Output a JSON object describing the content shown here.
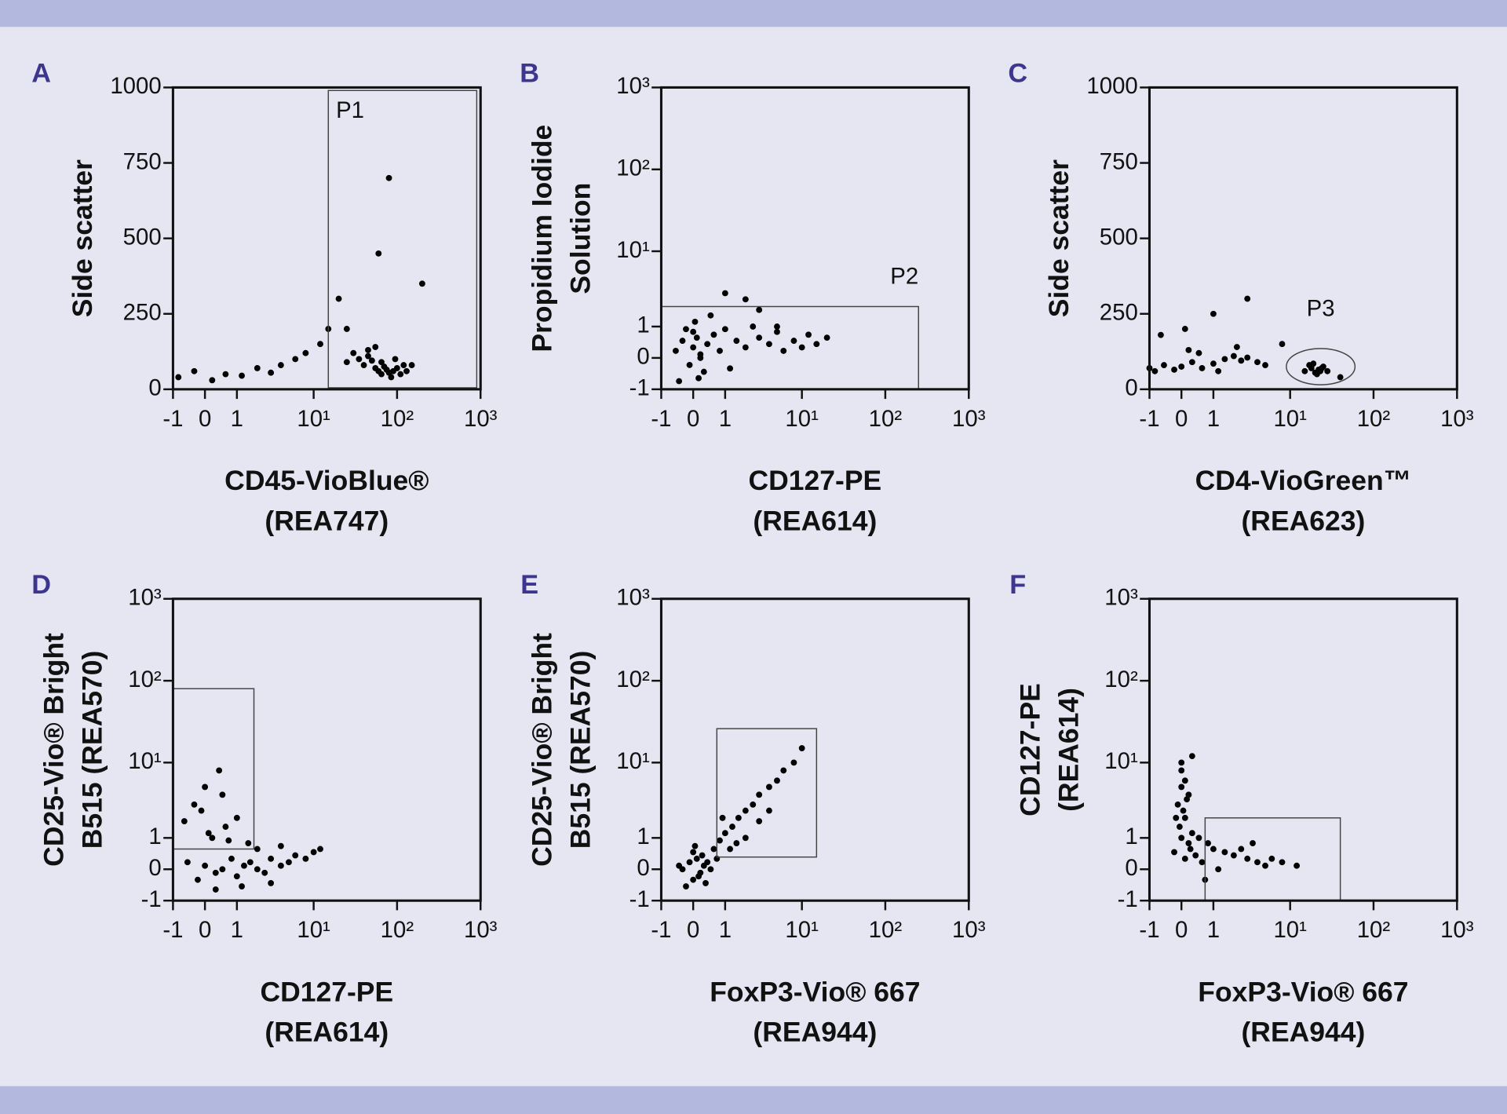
{
  "chart_data": [
    {
      "type": "scatter",
      "panel": "A",
      "xlabel": [
        "CD45-VioBlue®",
        "(REA747)"
      ],
      "ylabel": [
        "Side scatter"
      ],
      "xscale": "asinh",
      "yscale": "linear",
      "xlim": [
        -1,
        1000
      ],
      "ylim": [
        0,
        1000
      ],
      "xticks": [
        -1,
        0,
        1,
        {
          "value": 10,
          "label": "10¹"
        },
        {
          "value": 100,
          "label": "10²"
        },
        {
          "value": 1000,
          "label": "10³"
        }
      ],
      "yticks": [
        0,
        250,
        500,
        750,
        1000
      ],
      "color": "#000000",
      "x": [
        -0.8,
        -0.3,
        0.2,
        0.6,
        1.2,
        2,
        3,
        4,
        6,
        8,
        12,
        15,
        20,
        25,
        30,
        35,
        40,
        45,
        50,
        55,
        60,
        65,
        70,
        75,
        80,
        90,
        100,
        110,
        120,
        45,
        55,
        65,
        85,
        95,
        130,
        150,
        25,
        60,
        80,
        200
      ],
      "values": [
        40,
        60,
        30,
        50,
        45,
        70,
        55,
        80,
        100,
        120,
        150,
        200,
        300,
        90,
        120,
        100,
        80,
        110,
        95,
        70,
        60,
        50,
        75,
        65,
        55,
        60,
        70,
        50,
        80,
        130,
        140,
        90,
        40,
        100,
        60,
        80,
        200,
        450,
        700,
        350
      ],
      "gates": [
        {
          "shape": "rect",
          "label": "P1",
          "x": [
            15,
            900
          ],
          "y": [
            5,
            990
          ]
        }
      ]
    },
    {
      "type": "scatter",
      "panel": "B",
      "xlabel": [
        "CD127-PE",
        "(REA614)"
      ],
      "ylabel": [
        "Propidium Iodide",
        "Solution"
      ],
      "xscale": "asinh",
      "yscale": "asinh",
      "xlim": [
        -1,
        1000
      ],
      "ylim": [
        -1,
        1000
      ],
      "xticks": [
        -1,
        0,
        1,
        {
          "value": 10,
          "label": "10¹"
        },
        {
          "value": 100,
          "label": "10²"
        },
        {
          "value": 1000,
          "label": "10³"
        }
      ],
      "yticks": [
        -1,
        0,
        1,
        {
          "value": 10,
          "label": "10¹"
        },
        {
          "value": 100,
          "label": "10²"
        },
        {
          "value": 1000,
          "label": "10³"
        }
      ],
      "color": "#000000",
      "x": [
        -0.5,
        -0.3,
        -0.1,
        0,
        0.1,
        0.2,
        0.3,
        -0.2,
        0.05,
        0.15,
        0.4,
        0.6,
        0.8,
        1,
        1.5,
        2,
        2.5,
        3,
        4,
        5,
        6,
        8,
        10,
        12,
        15,
        3,
        2,
        1.2,
        0.5,
        -0.4,
        0,
        0.2,
        20,
        1,
        5
      ],
      "values": [
        0.2,
        0.5,
        -0.2,
        0.3,
        0.6,
        0,
        -0.4,
        0.9,
        1.2,
        -0.6,
        0.4,
        0.7,
        0.2,
        0.9,
        0.5,
        0.3,
        1,
        0.6,
        0.4,
        0.8,
        0.2,
        0.5,
        0.3,
        0.7,
        0.4,
        1.8,
        2.5,
        -0.3,
        1.5,
        -0.7,
        0.8,
        0.1,
        0.6,
        3,
        1
      ],
      "gates": [
        {
          "shape": "rect",
          "label": "P2",
          "x": [
            -1,
            250
          ],
          "y": [
            -1,
            2
          ]
        }
      ]
    },
    {
      "type": "scatter",
      "panel": "C",
      "xlabel": [
        "CD4-VioGreen™",
        "(REA623)"
      ],
      "ylabel": [
        "Side scatter"
      ],
      "xscale": "asinh",
      "yscale": "linear",
      "xlim": [
        -1,
        1000
      ],
      "ylim": [
        0,
        1000
      ],
      "xticks": [
        -1,
        0,
        1,
        {
          "value": 10,
          "label": "10¹"
        },
        {
          "value": 100,
          "label": "10²"
        },
        {
          "value": 1000,
          "label": "10³"
        }
      ],
      "yticks": [
        0,
        250,
        500,
        750,
        1000
      ],
      "color": "#000000",
      "x": [
        -1,
        -0.8,
        -0.5,
        -0.2,
        0,
        0.3,
        0.6,
        1,
        1.5,
        2,
        2.5,
        3,
        4,
        5,
        0.5,
        1.2,
        2.2,
        -0.6,
        0.1,
        15,
        18,
        20,
        22,
        25,
        28,
        17,
        21,
        24,
        19,
        23,
        8,
        40,
        3,
        1,
        0.2
      ],
      "values": [
        70,
        60,
        80,
        65,
        75,
        90,
        70,
        85,
        100,
        110,
        95,
        105,
        90,
        80,
        120,
        60,
        140,
        180,
        200,
        60,
        70,
        55,
        65,
        75,
        60,
        80,
        50,
        70,
        85,
        60,
        150,
        40,
        300,
        250,
        130
      ],
      "gates": [
        {
          "shape": "ellipse",
          "label": "P3",
          "x": [
            9,
            60
          ],
          "y": [
            15,
            135
          ]
        }
      ]
    },
    {
      "type": "scatter",
      "panel": "D",
      "xlabel": [
        "CD127-PE",
        "(REA614)"
      ],
      "ylabel": [
        "CD25-Vio® Bright",
        "B515 (REA570)"
      ],
      "xscale": "asinh",
      "yscale": "asinh",
      "xlim": [
        -1,
        1000
      ],
      "ylim": [
        -1,
        1000
      ],
      "xticks": [
        -1,
        0,
        1,
        {
          "value": 10,
          "label": "10¹"
        },
        {
          "value": 100,
          "label": "10²"
        },
        {
          "value": 1000,
          "label": "10³"
        }
      ],
      "yticks": [
        -1,
        0,
        1,
        {
          "value": 10,
          "label": "10¹"
        },
        {
          "value": 100,
          "label": "10²"
        },
        {
          "value": 1000,
          "label": "10³"
        }
      ],
      "color": "#000000",
      "x": [
        -0.5,
        -0.2,
        0,
        0.3,
        0.5,
        0.8,
        1,
        1.3,
        1.6,
        2,
        2.5,
        3,
        4,
        5,
        6,
        8,
        10,
        0.2,
        0.6,
        1,
        1.5,
        -0.3,
        0,
        0.4,
        0.1,
        -0.1,
        0.7,
        2,
        3,
        1.2,
        0.3,
        12,
        0.5,
        4,
        -0.6
      ],
      "values": [
        0.2,
        -0.3,
        0.1,
        -0.1,
        0,
        0.3,
        -0.2,
        0.1,
        0.2,
        0,
        -0.1,
        0.3,
        0.1,
        0.2,
        0.4,
        0.3,
        0.5,
        1,
        1.5,
        2,
        0.8,
        3,
        5,
        8,
        1.2,
        2.5,
        0.9,
        0.6,
        -0.4,
        -0.5,
        -0.6,
        0.6,
        4,
        0.7,
        1.8
      ],
      "gates": [
        {
          "shape": "rect",
          "x": [
            -1,
            1.8
          ],
          "y": [
            0.6,
            80
          ]
        }
      ]
    },
    {
      "type": "scatter",
      "panel": "E",
      "xlabel": [
        "FoxP3-Vio® 667",
        "(REA944)"
      ],
      "ylabel": [
        "CD25-Vio® Bright",
        "B515 (REA570)"
      ],
      "xscale": "asinh",
      "yscale": "asinh",
      "xlim": [
        -1,
        1000
      ],
      "ylim": [
        -1,
        1000
      ],
      "xticks": [
        -1,
        0,
        1,
        {
          "value": 10,
          "label": "10¹"
        },
        {
          "value": 100,
          "label": "10²"
        },
        {
          "value": 1000,
          "label": "10³"
        }
      ],
      "yticks": [
        -1,
        0,
        1,
        {
          "value": 10,
          "label": "10¹"
        },
        {
          "value": 100,
          "label": "10²"
        },
        {
          "value": 1000,
          "label": "10³"
        }
      ],
      "color": "#000000",
      "x": [
        -0.3,
        -0.1,
        0,
        0.1,
        0.2,
        0.3,
        0,
        -0.2,
        0.15,
        0.25,
        0.05,
        0.4,
        0.6,
        0.8,
        1,
        1.3,
        1.6,
        2,
        2.5,
        3,
        4,
        5,
        6,
        8,
        1.2,
        2,
        3,
        0.9,
        1.5,
        -0.4,
        0.5,
        0.35,
        10,
        0.7,
        4
      ],
      "values": [
        0,
        0.2,
        -0.3,
        0.3,
        -0.1,
        0.1,
        0.5,
        -0.5,
        -0.2,
        0.4,
        0.7,
        0.2,
        0.6,
        0.9,
        1.2,
        1.5,
        2,
        2.5,
        3,
        4,
        5,
        6,
        8,
        10,
        0.6,
        1,
        1.8,
        2,
        0.8,
        0.1,
        0,
        -0.4,
        15,
        0.3,
        2.5
      ],
      "gates": [
        {
          "shape": "rect",
          "x": [
            0.7,
            15
          ],
          "y": [
            0.35,
            26
          ]
        }
      ]
    },
    {
      "type": "scatter",
      "panel": "F",
      "xlabel": [
        "FoxP3-Vio® 667",
        "(REA944)"
      ],
      "ylabel": [
        "CD127-PE",
        "(REA614)"
      ],
      "xscale": "asinh",
      "yscale": "asinh",
      "xlim": [
        -1,
        1000
      ],
      "ylim": [
        -1,
        1000
      ],
      "xticks": [
        -1,
        0,
        1,
        {
          "value": 10,
          "label": "10¹"
        },
        {
          "value": 100,
          "label": "10²"
        },
        {
          "value": 1000,
          "label": "10³"
        }
      ],
      "yticks": [
        -1,
        0,
        1,
        {
          "value": 10,
          "label": "10¹"
        },
        {
          "value": 100,
          "label": "10²"
        },
        {
          "value": 1000,
          "label": "10³"
        }
      ],
      "color": "#000000",
      "x": [
        0,
        0.1,
        -0.1,
        0.2,
        0,
        0.05,
        -0.05,
        0.15,
        0.1,
        0,
        0.3,
        0.2,
        -0.15,
        0.25,
        0.5,
        0.8,
        1,
        1.5,
        2,
        3,
        4,
        5,
        6,
        8,
        1.2,
        2.5,
        0.6,
        0.4,
        0,
        -0.2,
        0.1,
        0.3,
        12,
        0.7,
        3.5
      ],
      "values": [
        1,
        2,
        3,
        4,
        5,
        2.5,
        1.5,
        3.5,
        6,
        8,
        1.2,
        0.8,
        2,
        0.6,
        1,
        0.8,
        0.6,
        0.5,
        0.4,
        0.3,
        0.2,
        0.1,
        0.3,
        0.2,
        0,
        0.6,
        0.2,
        0.4,
        10,
        0.5,
        0.3,
        12,
        0.1,
        -0.3,
        0.8
      ],
      "gates": [
        {
          "shape": "rect",
          "x": [
            0.7,
            40
          ],
          "y": [
            -1,
            2
          ]
        }
      ]
    }
  ]
}
